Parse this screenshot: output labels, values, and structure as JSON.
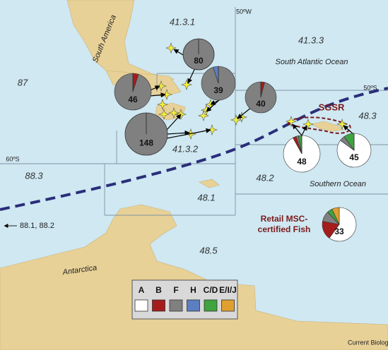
{
  "region_labels": [
    "41.3.1",
    "41.3.3",
    "87",
    "41.3.2",
    "48.3",
    "88.3",
    "48.2",
    "48.1",
    "48.5"
  ],
  "grid_labels": [
    "50ºW",
    "50ºS",
    "60ºS"
  ],
  "places": [
    "South America",
    "South Atlantic Ocean",
    "Southern Ocean",
    "Antarctica"
  ],
  "sgsr": "SGSR",
  "retail_label": [
    "Retail MSC-",
    "certified Fish"
  ],
  "off_map": "88.1, 88.2",
  "legend": {
    "items": [
      {
        "label": "A",
        "color": "#ffffff"
      },
      {
        "label": "B",
        "color": "#a51c1c"
      },
      {
        "label": "F",
        "color": "#808080"
      },
      {
        "label": "H",
        "color": "#5b7fc0"
      },
      {
        "label": "C/D",
        "color": "#3fa33f"
      },
      {
        "label": "E/I/J",
        "color": "#e0a030"
      }
    ]
  },
  "pies": [
    {
      "n": 80,
      "shares": [
        0,
        0,
        100,
        0,
        0,
        0
      ]
    },
    {
      "n": 46,
      "shares": [
        0,
        5,
        95,
        0,
        0,
        0
      ]
    },
    {
      "n": 39,
      "shares": [
        0,
        0,
        95,
        5,
        0,
        0
      ]
    },
    {
      "n": 40,
      "shares": [
        0,
        4,
        96,
        0,
        0,
        0
      ]
    },
    {
      "n": 148,
      "shares": [
        0,
        0,
        100,
        0,
        0,
        0
      ]
    },
    {
      "n": 48,
      "shares": [
        92,
        3,
        2,
        0,
        3,
        0
      ]
    },
    {
      "n": 45,
      "shares": [
        85,
        0,
        5,
        0,
        10,
        0
      ]
    },
    {
      "n": 33,
      "shares": [
        60,
        18,
        10,
        0,
        5,
        7
      ]
    }
  ],
  "credit": "Current Biology"
}
